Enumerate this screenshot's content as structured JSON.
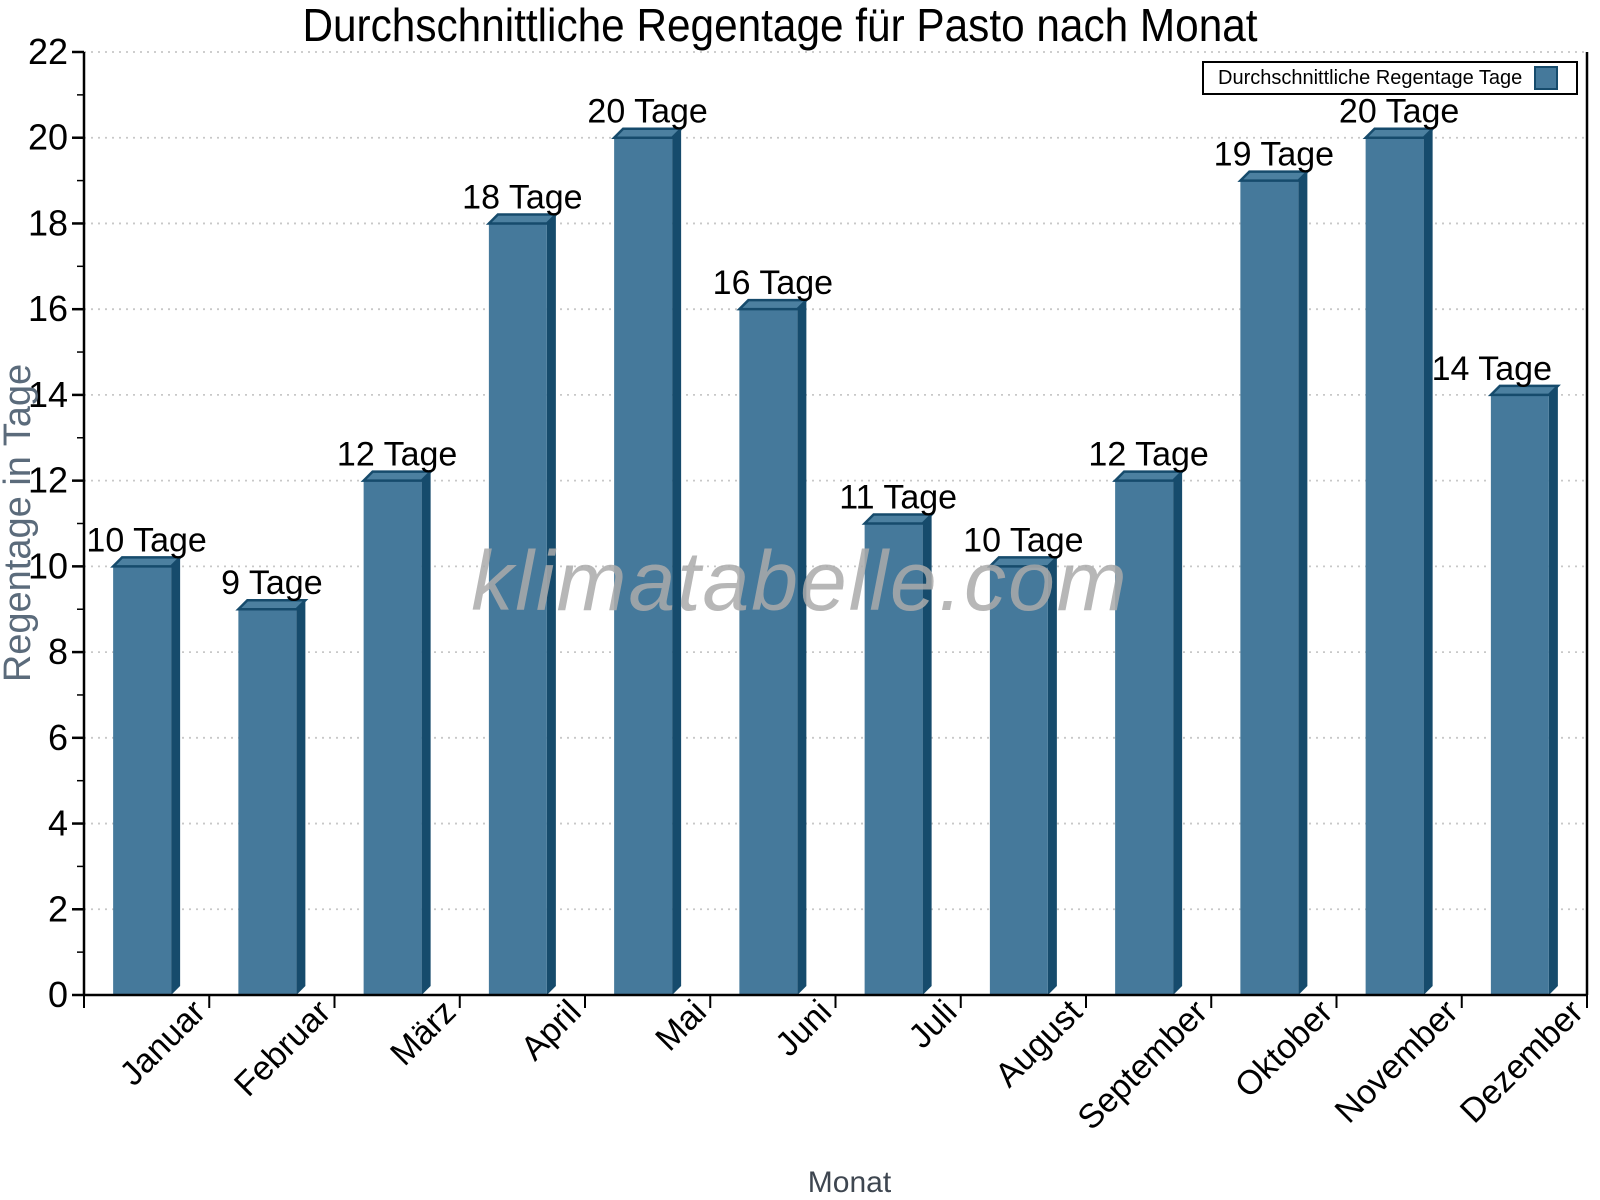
{
  "chart_data": {
    "type": "bar",
    "title": "Durchschnittliche Regentage für Pasto nach Monat",
    "xlabel": "Monat",
    "ylabel": "Regentage in Tage",
    "categories": [
      "Januar",
      "Februar",
      "März",
      "April",
      "Mai",
      "Juni",
      "Juli",
      "August",
      "September",
      "Oktober",
      "November",
      "Dezember"
    ],
    "values": [
      10,
      9,
      12,
      18,
      20,
      16,
      11,
      10,
      12,
      19,
      20,
      14
    ],
    "bar_labels": [
      "10 Tage",
      "9 Tage",
      "12 Tage",
      "18 Tage",
      "20 Tage",
      "16 Tage",
      "11 Tage",
      "10 Tage",
      "12 Tage",
      "19 Tage",
      "20 Tage",
      "14 Tage"
    ],
    "ylim": [
      0,
      22
    ],
    "ytick_step": 2,
    "yticks": [
      0,
      2,
      4,
      6,
      8,
      10,
      12,
      14,
      16,
      18,
      20,
      22
    ],
    "grid": "horizontal-dotted",
    "legend_label": "Durchschnittliche Regentage Tage",
    "legend_position": "top-right",
    "watermark": "klimatabelle.com",
    "colors": {
      "bar_face": "#45799b",
      "bar_side": "#164b6c",
      "bar_top": "#4c80a0",
      "bar_outline": "#164b6c",
      "axis": "#000000",
      "grid": "#c8c8c8",
      "ylabel_text": "#5b6b7b",
      "xlabel_text": "#3e4650",
      "tick_label_text": "#000000",
      "watermark_text": "#ababab"
    }
  }
}
